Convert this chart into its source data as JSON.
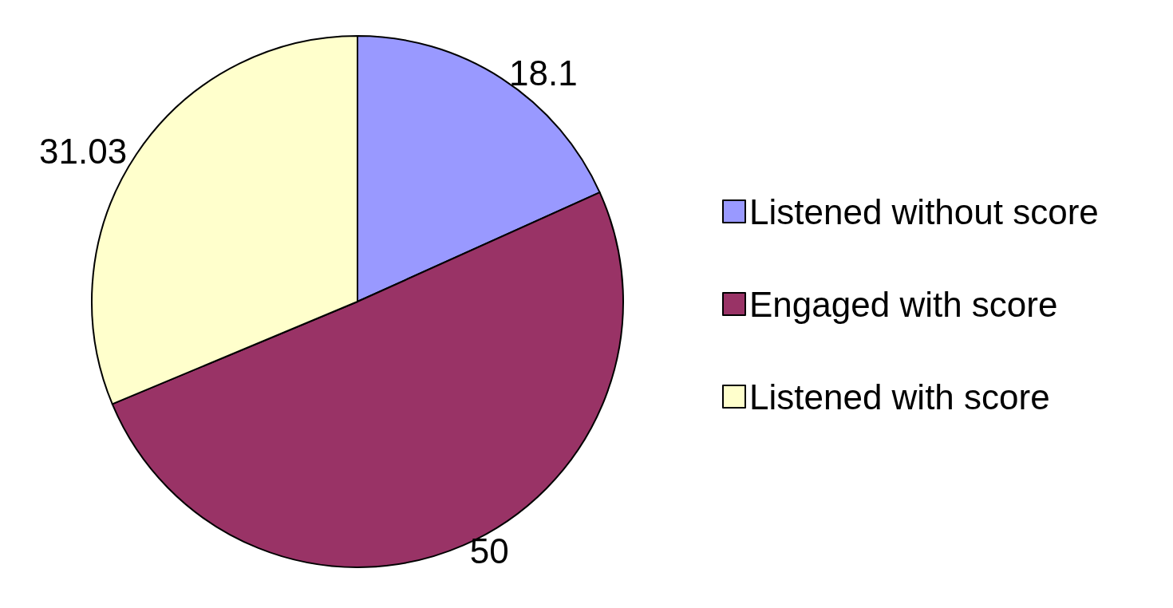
{
  "chart_data": {
    "type": "pie",
    "categories": [
      "Listened without score",
      "Engaged with score",
      "Listened with score"
    ],
    "values": [
      18.1,
      50,
      31.03
    ],
    "colors": [
      "#9999ff",
      "#993366",
      "#ffffcc"
    ],
    "data_labels": true,
    "legend": "right"
  }
}
